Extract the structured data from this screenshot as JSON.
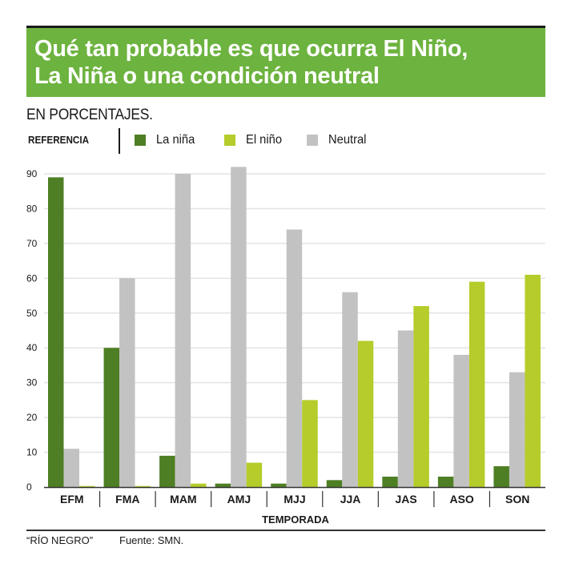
{
  "header": {
    "title": "Qué tan probable es que ocurra El Niño, La Niña o una condición neutral",
    "title_line1": "Qué tan probable es que ocurra El Niño,",
    "title_line2": "La Niña o una condición neutral",
    "subtitle": "EN PORCENTAJES.",
    "banner_color": "#6db33f"
  },
  "legend": {
    "title": "REFERENCIA",
    "items": [
      {
        "label": "La niña",
        "color": "#4e7f24"
      },
      {
        "label": "El niño",
        "color": "#b5cc2a"
      },
      {
        "label": "Neutral",
        "color": "#c3c2c3"
      }
    ]
  },
  "footer": {
    "credit": "“RÍO NEGRO”",
    "source": "Fuente: SMN."
  },
  "chart_data": {
    "type": "bar",
    "title": "Qué tan probable es que ocurra El Niño, La Niña o una condición neutral",
    "subtitle": "EN PORCENTAJES.",
    "xlabel": "TEMPORADA",
    "ylabel": "",
    "ylim": [
      0,
      95
    ],
    "yticks": [
      0,
      10,
      20,
      30,
      40,
      50,
      60,
      70,
      80,
      90
    ],
    "grid": true,
    "legend_position": "top-left",
    "categories": [
      "EFM",
      "FMA",
      "MAM",
      "AMJ",
      "MJJ",
      "JJA",
      "JAS",
      "ASO",
      "SON"
    ],
    "bar_order": [
      "La niña",
      "Neutral",
      "El niño"
    ],
    "series": [
      {
        "name": "La niña",
        "color": "#4e7f24",
        "values": [
          89,
          40,
          9,
          1,
          1,
          2,
          3,
          3,
          6
        ]
      },
      {
        "name": "Neutral",
        "color": "#c3c2c3",
        "values": [
          11,
          60,
          90,
          92,
          74,
          56,
          45,
          38,
          33
        ]
      },
      {
        "name": "El niño",
        "color": "#b5cc2a",
        "values": [
          0.3,
          0.3,
          1,
          7,
          25,
          42,
          52,
          59,
          61
        ]
      }
    ]
  }
}
